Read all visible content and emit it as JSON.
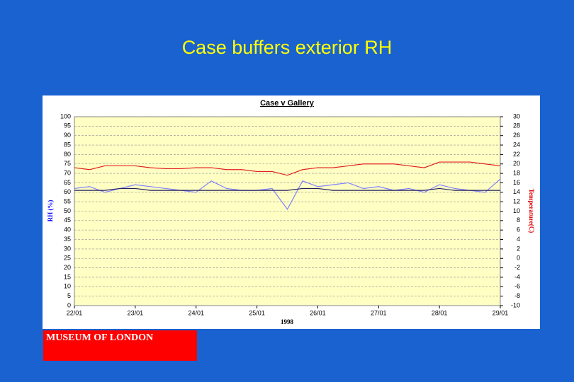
{
  "page_title": "Case buffers exterior RH",
  "logo_text": "MUSEUM OF LONDON",
  "chart_data": {
    "type": "line",
    "title": "Case v Gallery",
    "x_label": "1998",
    "y_label": "RH (%)",
    "y2_label": "Temperature(C)",
    "x": [
      22,
      22.25,
      22.5,
      22.75,
      23,
      23.25,
      23.5,
      23.75,
      24,
      24.25,
      24.5,
      24.75,
      25,
      25.25,
      25.5,
      25.75,
      26,
      26.25,
      26.5,
      26.75,
      27,
      27.25,
      27.5,
      27.75,
      28,
      28.25,
      28.5,
      28.75,
      29
    ],
    "xlim": [
      22,
      29
    ],
    "xticks": [
      {
        "value": 22,
        "label": "22/01"
      },
      {
        "value": 23,
        "label": "23/01"
      },
      {
        "value": 24,
        "label": "24/01"
      },
      {
        "value": 25,
        "label": "25/01"
      },
      {
        "value": 26,
        "label": "26/01"
      },
      {
        "value": 27,
        "label": "27/01"
      },
      {
        "value": 28,
        "label": "28/01"
      },
      {
        "value": 29,
        "label": "29/01"
      }
    ],
    "ylim": [
      0,
      100
    ],
    "yticks": [
      0,
      5,
      10,
      15,
      20,
      25,
      30,
      35,
      40,
      45,
      50,
      55,
      60,
      65,
      70,
      75,
      80,
      85,
      90,
      95,
      100
    ],
    "y2lim": [
      -10,
      30
    ],
    "y2ticks": [
      -10,
      -8,
      -6,
      -4,
      -2,
      0,
      2,
      4,
      6,
      8,
      10,
      12,
      14,
      16,
      18,
      20,
      22,
      24,
      26,
      28,
      30
    ],
    "grid": true,
    "series": [
      {
        "color": "#e02020",
        "axis": "y2",
        "values": [
          19.2,
          18.8,
          19.6,
          19.6,
          19.6,
          19.2,
          19,
          19,
          19.2,
          19.2,
          18.8,
          18.8,
          18.4,
          18.4,
          17.6,
          18.8,
          19.2,
          19.2,
          19.6,
          20,
          20,
          20,
          19.6,
          19.2,
          20.4,
          20.4,
          20.4,
          20,
          19.6
        ]
      },
      {
        "color": "#8080ff",
        "values": [
          62,
          63,
          60,
          62,
          64,
          63,
          62,
          61,
          60,
          66,
          62,
          61,
          61,
          62,
          51,
          66,
          63,
          64,
          65,
          62,
          63,
          61,
          62,
          60,
          64,
          62,
          61,
          60,
          67
        ]
      },
      {
        "color": "#202060",
        "values": [
          61,
          61,
          61,
          62,
          62,
          61,
          61,
          61,
          61,
          61,
          61,
          61,
          61,
          61,
          61,
          62,
          62,
          61,
          61,
          61,
          61,
          61,
          61,
          61,
          62,
          61,
          61,
          61,
          61
        ]
      }
    ]
  }
}
